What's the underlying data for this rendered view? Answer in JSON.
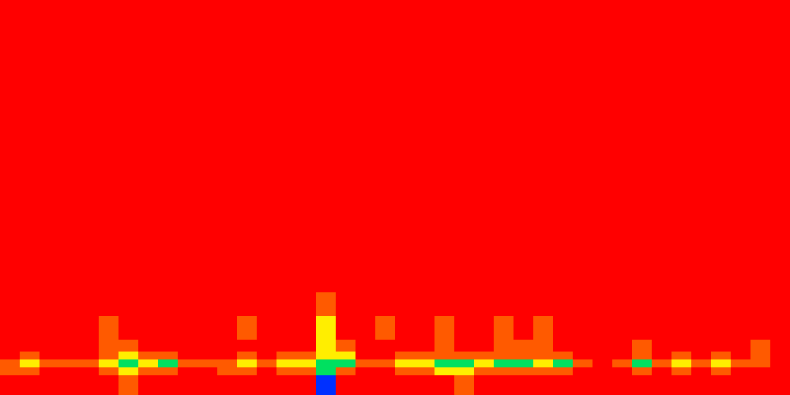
{
  "chart_data": {
    "type": "heatmap",
    "tick_labels": false,
    "xlim": [
      0,
      1000
    ],
    "ylim": [
      0,
      500
    ],
    "xbins": [
      0,
      25,
      50,
      75,
      100,
      125,
      150,
      175,
      200,
      225,
      250,
      275,
      300,
      325,
      350,
      375,
      400,
      425,
      450,
      475,
      500,
      525,
      550,
      575,
      600,
      625,
      650,
      675,
      700,
      725,
      750,
      775,
      800,
      825,
      850,
      875,
      900,
      925,
      950,
      975,
      1000
    ],
    "ybins": [
      0,
      25,
      35,
      45,
      55,
      70,
      100,
      130,
      500
    ],
    "zlim": [
      0,
      4
    ],
    "colors": [
      "#ff0000",
      "#ff5a00",
      "#ffee00",
      "#00e060",
      "#0030ff"
    ],
    "z": [
      [
        0,
        0,
        0,
        0,
        0,
        0,
        1,
        0,
        0,
        0,
        0,
        0,
        0,
        0,
        0,
        0,
        4,
        0,
        0,
        0,
        0,
        0,
        0,
        1,
        0,
        0,
        0,
        0,
        0,
        0,
        0,
        0,
        0,
        0,
        0,
        0,
        0,
        0,
        0,
        0
      ],
      [
        1,
        1,
        0,
        0,
        0,
        1,
        2,
        1,
        1,
        0,
        0,
        1,
        1,
        0,
        1,
        1,
        3,
        1,
        0,
        0,
        1,
        1,
        2,
        2,
        1,
        1,
        1,
        1,
        1,
        0,
        0,
        0,
        1,
        0,
        1,
        0,
        1,
        0,
        0,
        0
      ],
      [
        1,
        2,
        1,
        1,
        1,
        2,
        3,
        2,
        3,
        1,
        1,
        1,
        2,
        1,
        2,
        2,
        3,
        3,
        1,
        1,
        2,
        2,
        3,
        3,
        2,
        3,
        3,
        2,
        3,
        1,
        0,
        1,
        3,
        1,
        2,
        1,
        2,
        1,
        1,
        0
      ],
      [
        0,
        1,
        0,
        0,
        0,
        1,
        2,
        1,
        1,
        0,
        0,
        0,
        1,
        0,
        1,
        1,
        2,
        2,
        0,
        0,
        1,
        1,
        1,
        1,
        1,
        1,
        1,
        1,
        1,
        0,
        0,
        0,
        1,
        0,
        1,
        0,
        1,
        0,
        1,
        0
      ],
      [
        0,
        0,
        0,
        0,
        0,
        1,
        1,
        0,
        0,
        0,
        0,
        0,
        0,
        0,
        0,
        0,
        2,
        1,
        0,
        0,
        0,
        0,
        1,
        0,
        0,
        1,
        1,
        1,
        0,
        0,
        0,
        0,
        1,
        0,
        0,
        0,
        0,
        0,
        1,
        0
      ],
      [
        0,
        0,
        0,
        0,
        0,
        1,
        0,
        0,
        0,
        0,
        0,
        0,
        1,
        0,
        0,
        0,
        2,
        0,
        0,
        1,
        0,
        0,
        1,
        0,
        0,
        1,
        0,
        1,
        0,
        0,
        0,
        0,
        0,
        0,
        0,
        0,
        0,
        0,
        0,
        0
      ],
      [
        0,
        0,
        0,
        0,
        0,
        0,
        0,
        0,
        0,
        0,
        0,
        0,
        0,
        0,
        0,
        0,
        1,
        0,
        0,
        0,
        0,
        0,
        0,
        0,
        0,
        0,
        0,
        0,
        0,
        0,
        0,
        0,
        0,
        0,
        0,
        0,
        0,
        0,
        0,
        0
      ],
      [
        0,
        0,
        0,
        0,
        0,
        0,
        0,
        0,
        0,
        0,
        0,
        0,
        0,
        0,
        0,
        0,
        0,
        0,
        0,
        0,
        0,
        0,
        0,
        0,
        0,
        0,
        0,
        0,
        0,
        0,
        0,
        0,
        0,
        0,
        0,
        0,
        0,
        0,
        0,
        0
      ]
    ]
  }
}
